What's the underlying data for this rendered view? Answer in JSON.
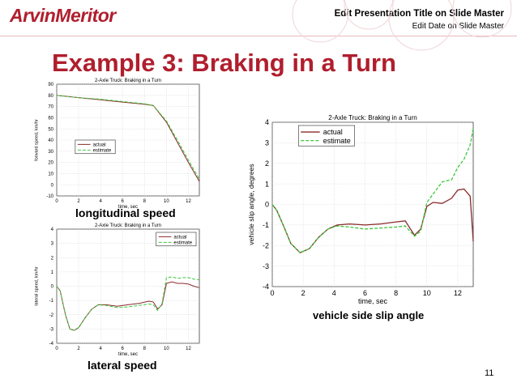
{
  "header": {
    "logo": "ArvinMeritor",
    "presentation_title": "Edit Presentation Title on Slide Master",
    "date": "Edit Date on Slide Master"
  },
  "slide": {
    "title": "Example 3: Braking in a Turn",
    "page_number": "11"
  },
  "captions": {
    "longitudinal": "longitudinal speed",
    "lateral": "lateral speed",
    "slip": "vehicle side slip angle"
  },
  "colors": {
    "brand": "#b01e2d",
    "actual": "#8b2a2a",
    "estimate": "#3cc83c"
  },
  "chart_data": [
    {
      "type": "line",
      "title": "2-Axle Truck: Braking in a Turn",
      "xlabel": "time, sec",
      "ylabel": "forward speed, km/hr",
      "xlim": [
        0,
        13
      ],
      "ylim": [
        -10,
        90
      ],
      "xticks": [
        0,
        2,
        4,
        6,
        8,
        10,
        12
      ],
      "yticks": [
        -10,
        0,
        10,
        20,
        30,
        40,
        50,
        60,
        70,
        80,
        90
      ],
      "grid": true,
      "legend": "top-left",
      "series": [
        {
          "name": "actual",
          "x": [
            0,
            2,
            4,
            6,
            8,
            8.8,
            10,
            11,
            12,
            13
          ],
          "y": [
            80,
            78,
            76,
            74,
            72,
            71,
            56,
            38,
            20,
            3
          ]
        },
        {
          "name": "estimate",
          "x": [
            0,
            2,
            4,
            6,
            8,
            8.8,
            10,
            11,
            12,
            13
          ],
          "y": [
            80,
            78,
            76.5,
            74.5,
            72.5,
            71,
            57,
            40,
            22,
            5
          ]
        }
      ]
    },
    {
      "type": "line",
      "title": "2-Axle Truck: Braking in a Turn",
      "xlabel": "time, sec",
      "ylabel": "lateral speed, km/hr",
      "xlim": [
        0,
        13
      ],
      "ylim": [
        -4,
        4
      ],
      "xticks": [
        0,
        2,
        4,
        6,
        8,
        10,
        12
      ],
      "yticks": [
        -4,
        -3,
        -2,
        -1,
        0,
        1,
        2,
        3,
        4
      ],
      "grid": true,
      "legend": "top-right",
      "series": [
        {
          "name": "actual",
          "x": [
            0,
            0.3,
            0.8,
            1.2,
            1.6,
            2,
            2.6,
            3.2,
            3.8,
            4.5,
            5.5,
            6.5,
            7.5,
            8.4,
            8.8,
            9.2,
            9.6,
            10,
            10.5,
            11,
            11.5,
            12,
            12.5,
            13
          ],
          "y": [
            0,
            -0.3,
            -2,
            -3,
            -3.1,
            -2.9,
            -2.2,
            -1.6,
            -1.3,
            -1.3,
            -1.4,
            -1.3,
            -1.2,
            -1.05,
            -1.1,
            -1.6,
            -1.3,
            0.2,
            0.3,
            0.2,
            0.2,
            0.15,
            0,
            -0.1
          ]
        },
        {
          "name": "estimate",
          "x": [
            0,
            0.3,
            0.8,
            1.2,
            1.6,
            2,
            2.6,
            3.2,
            3.8,
            4.5,
            5.5,
            6.5,
            7.5,
            8.4,
            8.8,
            9.2,
            9.6,
            10,
            10.5,
            11,
            11.5,
            12,
            12.5,
            13
          ],
          "y": [
            0,
            -0.3,
            -2,
            -3,
            -3.1,
            -2.9,
            -2.2,
            -1.6,
            -1.3,
            -1.35,
            -1.5,
            -1.45,
            -1.35,
            -1.25,
            -1.3,
            -1.7,
            -1.2,
            0.6,
            0.65,
            0.55,
            0.6,
            0.6,
            0.5,
            0.45
          ]
        }
      ]
    },
    {
      "type": "line",
      "title": "2-Axle Truck: Braking in a Turn",
      "xlabel": "time, sec",
      "ylabel": "vehicle slip angle, degrees",
      "xlim": [
        0,
        13
      ],
      "ylim": [
        -4,
        4
      ],
      "xticks": [
        0,
        2,
        4,
        6,
        8,
        10,
        12
      ],
      "yticks": [
        -4,
        -3,
        -2,
        -1,
        0,
        1,
        2,
        3,
        4
      ],
      "grid": true,
      "legend": "top-left",
      "series": [
        {
          "name": "actual",
          "x": [
            0,
            0.3,
            0.7,
            1.2,
            1.8,
            2.4,
            3,
            3.6,
            4.2,
            5,
            6,
            7,
            8,
            8.6,
            9.2,
            9.6,
            10,
            10.4,
            11,
            11.6,
            12,
            12.4,
            12.8,
            13
          ],
          "y": [
            0,
            -0.3,
            -1,
            -1.9,
            -2.35,
            -2.15,
            -1.6,
            -1.2,
            -1.0,
            -0.95,
            -1.0,
            -0.95,
            -0.85,
            -0.8,
            -1.5,
            -1.2,
            -0.1,
            0.1,
            0.05,
            0.3,
            0.7,
            0.75,
            0.4,
            -1.8
          ]
        },
        {
          "name": "estimate",
          "x": [
            0,
            0.3,
            0.7,
            1.2,
            1.8,
            2.4,
            3,
            3.6,
            4.2,
            5,
            6,
            7,
            8,
            8.6,
            9.2,
            9.6,
            10,
            10.4,
            11,
            11.6,
            12,
            12.4,
            12.8,
            13
          ],
          "y": [
            0,
            -0.3,
            -1,
            -1.9,
            -2.35,
            -2.15,
            -1.6,
            -1.2,
            -1.05,
            -1.1,
            -1.2,
            -1.15,
            -1.1,
            -1.05,
            -1.55,
            -1.3,
            0.1,
            0.5,
            1.1,
            1.2,
            1.8,
            2.2,
            2.9,
            3.7
          ]
        }
      ]
    }
  ]
}
